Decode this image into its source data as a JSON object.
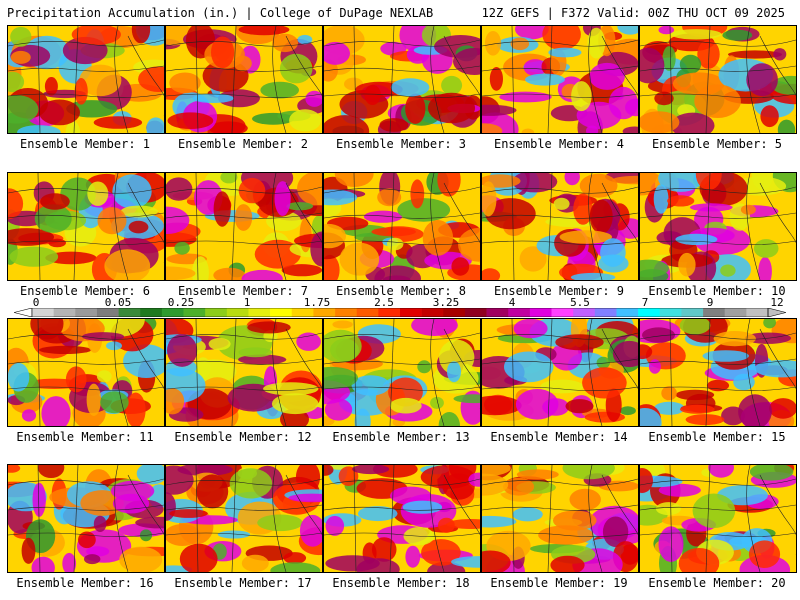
{
  "header": {
    "product": "Precipitation Accumulation (in.) | College of DuPage NEXLAB",
    "run": "12Z GEFS | F372 Valid: 00Z THU OCT 09 2025"
  },
  "legend": {
    "ticks": [
      "0",
      "0.05",
      "0.25",
      "1",
      "1.75",
      "2.5",
      "3.25",
      "4",
      "5.5",
      "7",
      "9",
      "12"
    ],
    "colors": [
      "#d4d4d4",
      "#b4b4b4",
      "#9a9a9a",
      "#7d7d7d",
      "#3a8a3a",
      "#1f7a1f",
      "#2f9a2f",
      "#4db02a",
      "#8ccc1a",
      "#b8dc10",
      "#e5ee10",
      "#ffff00",
      "#ffd400",
      "#ffa800",
      "#ff8000",
      "#ff5a00",
      "#ff2a00",
      "#e00000",
      "#c40000",
      "#a80000",
      "#900020",
      "#a00060",
      "#c000a0",
      "#e000e0",
      "#ff40ff",
      "#c060ff",
      "#8080ff",
      "#40c0ff",
      "#00ffff",
      "#40e0e0",
      "#60c8c8",
      "#808080",
      "#a0a0a0",
      "#c0c0c0"
    ]
  },
  "members": [
    {
      "label": "Ensemble Member: 1",
      "intensity": 0.55
    },
    {
      "label": "Ensemble Member: 2",
      "intensity": 0.6
    },
    {
      "label": "Ensemble Member: 3",
      "intensity": 0.55
    },
    {
      "label": "Ensemble Member: 4",
      "intensity": 0.75
    },
    {
      "label": "Ensemble Member: 5",
      "intensity": 0.45
    },
    {
      "label": "Ensemble Member: 6",
      "intensity": 0.45
    },
    {
      "label": "Ensemble Member: 7",
      "intensity": 0.4
    },
    {
      "label": "Ensemble Member: 8",
      "intensity": 0.6
    },
    {
      "label": "Ensemble Member: 9",
      "intensity": 0.7
    },
    {
      "label": "Ensemble Member: 10",
      "intensity": 0.45
    },
    {
      "label": "Ensemble Member: 11",
      "intensity": 0.7
    },
    {
      "label": "Ensemble Member: 12",
      "intensity": 0.75
    },
    {
      "label": "Ensemble Member: 13",
      "intensity": 0.65
    },
    {
      "label": "Ensemble Member: 14",
      "intensity": 0.55
    },
    {
      "label": "Ensemble Member: 15",
      "intensity": 0.8
    },
    {
      "label": "Ensemble Member: 16",
      "intensity": 0.7
    },
    {
      "label": "Ensemble Member: 17",
      "intensity": 0.7
    },
    {
      "label": "Ensemble Member: 18",
      "intensity": 0.75
    },
    {
      "label": "Ensemble Member: 19",
      "intensity": 0.6
    },
    {
      "label": "Ensemble Member: 20",
      "intensity": 0.65
    }
  ]
}
